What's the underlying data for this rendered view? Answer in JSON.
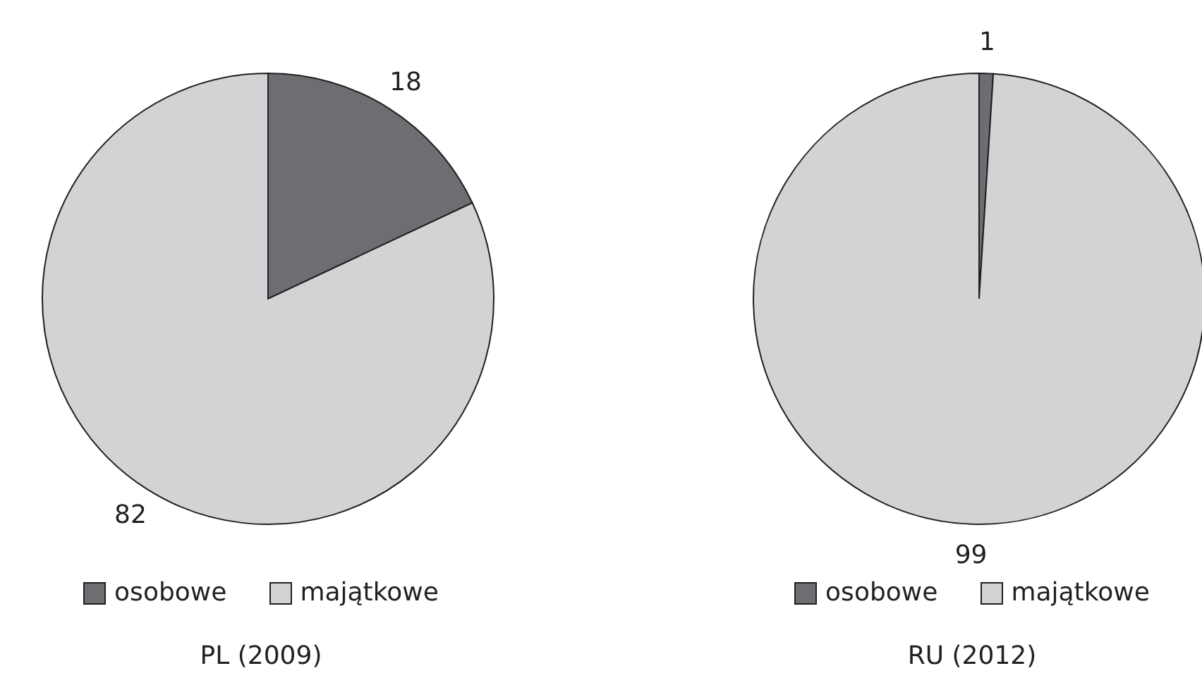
{
  "chart_data": [
    {
      "type": "pie",
      "title": "PL (2009)",
      "categories": [
        "osobowe",
        "majątkowe"
      ],
      "values": [
        18,
        82
      ],
      "colors": [
        "#6d6e71",
        "#d1d3d4"
      ],
      "legend": "bottom",
      "data_labels": true
    },
    {
      "type": "pie",
      "title": "RU (2012)",
      "categories": [
        "osobowe",
        "majątkowe"
      ],
      "values": [
        1,
        99
      ],
      "colors": [
        "#6d6e71",
        "#d1d3d4"
      ],
      "legend": "bottom",
      "data_labels": true
    }
  ]
}
